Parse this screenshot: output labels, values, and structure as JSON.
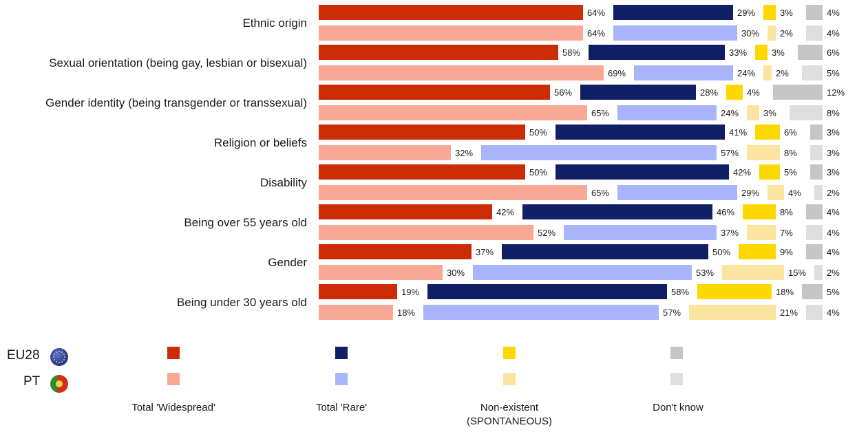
{
  "chart_data": {
    "type": "bar",
    "orientation": "horizontal-stacked-diverging",
    "groups": [
      "EU28",
      "PT"
    ],
    "categories": [
      "Ethnic origin",
      "Sexual orientation (being gay, lesbian or bisexual)",
      "Gender identity (being transgender or transsexual)",
      "Religion or beliefs",
      "Disability",
      "Being over 55 years old",
      "Gender",
      "Being under 30 years old"
    ],
    "series": [
      {
        "name": "Total 'Widespread'",
        "colors": {
          "EU28": "#cc2c05",
          "PT": "#f9a896"
        },
        "values": {
          "EU28": [
            64,
            58,
            56,
            50,
            50,
            42,
            37,
            19
          ],
          "PT": [
            64,
            69,
            65,
            32,
            65,
            52,
            30,
            18
          ]
        }
      },
      {
        "name": "Total 'Rare'",
        "colors": {
          "EU28": "#101e66",
          "PT": "#a9b5fb"
        },
        "values": {
          "EU28": [
            29,
            33,
            28,
            41,
            42,
            46,
            50,
            58
          ],
          "PT": [
            30,
            24,
            24,
            57,
            29,
            37,
            53,
            57
          ]
        }
      },
      {
        "name": "Non-existent (SPONTANEOUS)",
        "label_lines": [
          "Non-existent",
          "(SPONTANEOUS)"
        ],
        "colors": {
          "EU28": "#fdd800",
          "PT": "#fbe3a0"
        },
        "values": {
          "EU28": [
            3,
            3,
            4,
            6,
            5,
            8,
            9,
            18
          ],
          "PT": [
            2,
            2,
            3,
            8,
            4,
            7,
            15,
            21
          ]
        }
      },
      {
        "name": "Don't know",
        "colors": {
          "EU28": "#c6c6c6",
          "PT": "#dedede"
        },
        "values": {
          "EU28": [
            4,
            6,
            12,
            3,
            3,
            4,
            4,
            5
          ],
          "PT": [
            4,
            5,
            8,
            3,
            2,
            4,
            2,
            4
          ]
        }
      }
    ],
    "value_suffix": "%",
    "legend": {
      "placement": "bottom"
    }
  },
  "legend_groups": {
    "eu": "EU28",
    "pt": "PT"
  },
  "legend_labels": {
    "widespread": "Total 'Widespread'",
    "rare": "Total 'Rare'",
    "nonexistent_1": "Non-existent",
    "nonexistent_2": "(SPONTANEOUS)",
    "dontknow": "Don't know"
  },
  "icons": {
    "eu_flag": "eu-flag-icon",
    "pt_flag": "portugal-flag-icon"
  }
}
